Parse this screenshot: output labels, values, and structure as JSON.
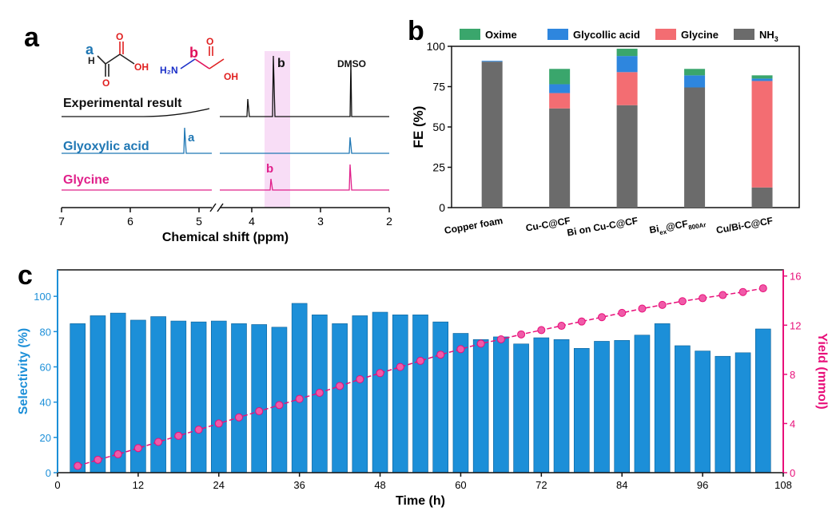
{
  "panel_a": {
    "label": "a",
    "structure_labels": {
      "glyoxylic_site": "a",
      "glycine_site": "b",
      "oh1": "OH",
      "o1": "O",
      "o2": "O",
      "h": "H",
      "nh2": "H₂N",
      "oh2": "OH",
      "o3": "O"
    },
    "traces": {
      "experimental": "Experimental result",
      "glyoxylic": "Glyoxylic acid",
      "glycine": "Glycine"
    },
    "peak_labels": {
      "b_exp": "b",
      "dmso": "DMSO",
      "a": "a",
      "b": "b"
    },
    "xlabel": "Chemical shift (ppm)",
    "ticks": [
      "7",
      "6",
      "5",
      "4",
      "3",
      "2"
    ]
  },
  "chart_data": [
    {
      "panel": "b",
      "type": "bar",
      "stacked": true,
      "ylabel": "FE (%)",
      "ylim": [
        0,
        100
      ],
      "yticks": [
        "0",
        "25",
        "50",
        "75",
        "100"
      ],
      "categories": [
        "Copper foam",
        "Cu-C@CF",
        "Bi on Cu-C@CF",
        "Bi",
        "Cu/Bi-C@CF"
      ],
      "category_sub": {
        "ex": "ex",
        "mid": "@CF",
        "sub800": "800Ar"
      },
      "legend_position": "top",
      "series": [
        {
          "name": "NH3",
          "name_main": "NH",
          "name_sub": "3",
          "color": "#6b6b6b",
          "values": [
            90.5,
            61.5,
            63.5,
            74.5,
            12.5
          ]
        },
        {
          "name": "Glycine",
          "color": "#f36d72",
          "values": [
            0,
            9.5,
            20.5,
            0,
            66.0
          ]
        },
        {
          "name": "Glycollic acid",
          "color": "#2e86de",
          "values": [
            0.5,
            5.5,
            10.0,
            7.5,
            1.5
          ]
        },
        {
          "name": "Oxime",
          "color": "#3aa66c",
          "values": [
            0,
            9.5,
            4.5,
            4.0,
            2.0
          ]
        }
      ]
    },
    {
      "panel": "c",
      "type": "bar",
      "xlabel": "Time (h)",
      "ylabel": "Selectivity (%)",
      "ylabel_right": "Yield (mmol)",
      "xlim": [
        0,
        108
      ],
      "ylim": [
        0,
        115
      ],
      "ylim_right": [
        0,
        16.5
      ],
      "xticks": [
        "0",
        "12",
        "24",
        "36",
        "48",
        "60",
        "72",
        "84",
        "96",
        "108"
      ],
      "yticks": [
        "0",
        "20",
        "40",
        "60",
        "80",
        "100"
      ],
      "yticks_right": [
        "0",
        "4",
        "8",
        "12",
        "16"
      ],
      "x": [
        3,
        6,
        9,
        12,
        15,
        18,
        21,
        24,
        27,
        30,
        33,
        36,
        39,
        42,
        45,
        48,
        51,
        54,
        57,
        60,
        63,
        66,
        69,
        72,
        75,
        78,
        81,
        84,
        87,
        90,
        93,
        96,
        99,
        102,
        105
      ],
      "series": [
        {
          "name": "Selectivity",
          "color": "#1c8fd8",
          "values": [
            84.5,
            89,
            90.5,
            86.5,
            88.5,
            86,
            85.5,
            86,
            84.5,
            84,
            82.5,
            96,
            89.5,
            84.5,
            89,
            91,
            89.5,
            89.5,
            85.5,
            79,
            75.5,
            77,
            73,
            76.5,
            75.5,
            70.5,
            74.5,
            75,
            78,
            84.5,
            72,
            69,
            66,
            68,
            81.5
          ]
        },
        {
          "name": "Yield",
          "color": "#e8107a",
          "values": [
            0.55,
            1.05,
            1.5,
            2.0,
            2.5,
            3.0,
            3.5,
            4.0,
            4.5,
            5.0,
            5.5,
            6.0,
            6.5,
            7.05,
            7.6,
            8.1,
            8.6,
            9.1,
            9.6,
            10.05,
            10.5,
            10.85,
            11.25,
            11.6,
            11.95,
            12.3,
            12.65,
            13.0,
            13.35,
            13.65,
            13.95,
            14.2,
            14.45,
            14.7,
            15.0
          ]
        }
      ]
    }
  ]
}
